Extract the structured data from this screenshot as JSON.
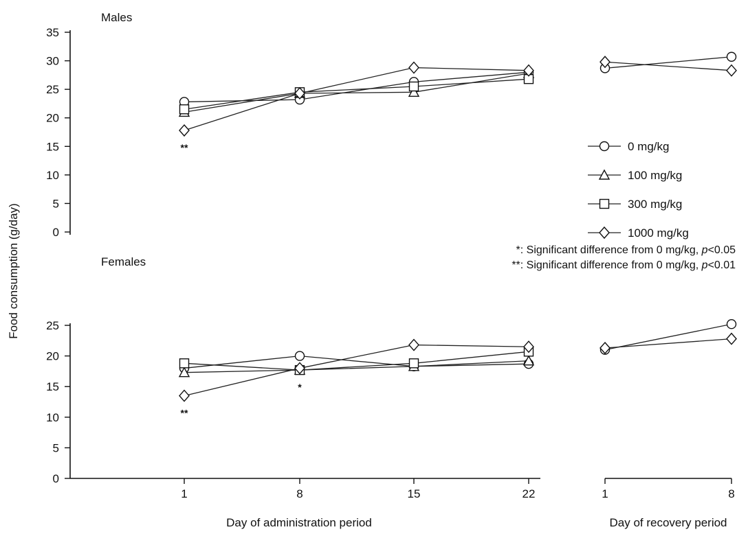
{
  "chart_data": {
    "type": "line",
    "ylabel": "Food consumption (g/day)",
    "xlabel_administration": "Day of administration period",
    "xlabel_recovery": "Day of recovery period",
    "x_administration": [
      "1",
      "8",
      "15",
      "22"
    ],
    "x_recovery": [
      "1",
      "8"
    ],
    "legend": {
      "position": "right",
      "entries": [
        {
          "label": "0 mg/kg",
          "marker": "circle"
        },
        {
          "label": "100 mg/kg",
          "marker": "triangle"
        },
        {
          "label": "300 mg/kg",
          "marker": "square"
        },
        {
          "label": "1000 mg/kg",
          "marker": "diamond"
        }
      ]
    },
    "notes": [
      {
        "symbol": "*",
        "text": ": Significant difference from 0 mg/kg, ",
        "p": "p",
        "rest": "<0.05"
      },
      {
        "symbol": "**",
        "text": ": Significant difference from 0 mg/kg, ",
        "p": "p",
        "rest": "<0.01"
      }
    ],
    "panels": [
      {
        "title": "Males",
        "ylim": [
          0,
          35
        ],
        "yticks": [
          "0",
          "5",
          "10",
          "15",
          "20",
          "25",
          "30",
          "35"
        ],
        "series": [
          {
            "name": "0 mg/kg",
            "marker": "circle",
            "administration": [
              22.8,
              23.2,
              26.3,
              28.0
            ],
            "recovery": [
              28.7,
              30.7
            ]
          },
          {
            "name": "100 mg/kg",
            "marker": "triangle",
            "administration": [
              21.0,
              24.3,
              24.5,
              27.8
            ],
            "recovery": [
              null,
              null
            ]
          },
          {
            "name": "300 mg/kg",
            "marker": "square",
            "administration": [
              21.5,
              24.5,
              25.5,
              26.8
            ],
            "recovery": [
              null,
              null
            ]
          },
          {
            "name": "1000 mg/kg",
            "marker": "diamond",
            "administration": [
              17.8,
              24.3,
              28.8,
              28.3
            ],
            "recovery": [
              29.8,
              28.3
            ]
          }
        ],
        "annotations": [
          {
            "day": "1",
            "text": "**"
          }
        ]
      },
      {
        "title": "Females",
        "ylim": [
          0,
          25
        ],
        "yticks": [
          "0",
          "5",
          "10",
          "15",
          "20",
          "25"
        ],
        "series": [
          {
            "name": "0 mg/kg",
            "marker": "circle",
            "administration": [
              18.0,
              20.0,
              18.3,
              18.7
            ],
            "recovery": [
              21.0,
              25.2
            ]
          },
          {
            "name": "100 mg/kg",
            "marker": "triangle",
            "administration": [
              17.3,
              17.7,
              18.3,
              19.2
            ],
            "recovery": [
              null,
              null
            ]
          },
          {
            "name": "300 mg/kg",
            "marker": "square",
            "administration": [
              18.8,
              17.7,
              18.8,
              20.7
            ],
            "recovery": [
              null,
              null
            ]
          },
          {
            "name": "1000 mg/kg",
            "marker": "diamond",
            "administration": [
              13.5,
              18.0,
              21.8,
              21.5
            ],
            "recovery": [
              21.3,
              22.8
            ]
          }
        ],
        "annotations": [
          {
            "day": "1",
            "text": "**"
          },
          {
            "day": "8",
            "text": "*"
          }
        ]
      }
    ]
  }
}
